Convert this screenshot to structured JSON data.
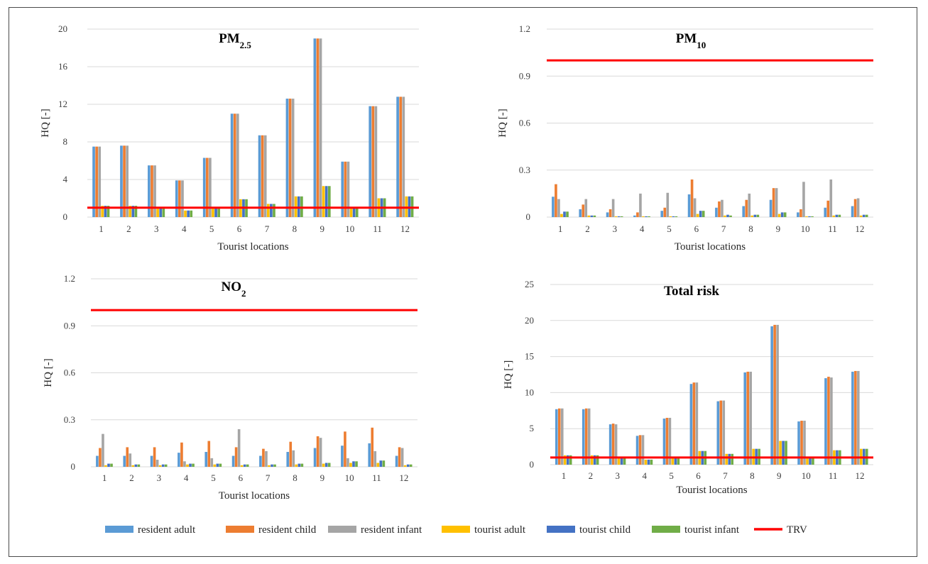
{
  "chart_data": {
    "type": "bar",
    "shared_categories": [
      "1",
      "2",
      "3",
      "4",
      "5",
      "6",
      "7",
      "8",
      "9",
      "10",
      "11",
      "12"
    ],
    "series_names": [
      "resident adult",
      "resident child",
      "resident infant",
      "tourist adult",
      "tourist child",
      "tourist infant"
    ],
    "series_colors": [
      "#5b9bd5",
      "#ed7d31",
      "#a5a5a5",
      "#ffc000",
      "#4472c4",
      "#70ad47"
    ],
    "reference_line": {
      "name": "TRV",
      "value": 1,
      "color": "#ff0000"
    },
    "legend": {
      "position": "bottom",
      "items": [
        "resident adult",
        "resident child",
        "resident infant",
        "tourist adult",
        "tourist child",
        "tourist infant",
        "TRV"
      ]
    },
    "panels": [
      {
        "id": "pm25",
        "title": "PM",
        "title_sub": "2.5",
        "xlabel": "Tourist locations",
        "ylabel": "HQ [-]",
        "ylim": [
          0,
          20
        ],
        "yticks": [
          "0",
          "4",
          "8",
          "12",
          "16",
          "20"
        ],
        "ytick_values": [
          0,
          4,
          8,
          12,
          16,
          20
        ],
        "grid": true,
        "series": [
          {
            "name": "resident adult",
            "values": [
              7.5,
              7.6,
              5.5,
              3.9,
              6.3,
              11.0,
              8.7,
              12.6,
              19.0,
              5.9,
              11.8,
              12.8
            ]
          },
          {
            "name": "resident child",
            "values": [
              7.5,
              7.6,
              5.5,
              3.9,
              6.3,
              11.0,
              8.7,
              12.6,
              19.0,
              5.9,
              11.8,
              12.8
            ]
          },
          {
            "name": "resident infant",
            "values": [
              7.5,
              7.6,
              5.5,
              3.9,
              6.3,
              11.0,
              8.7,
              12.6,
              19.0,
              5.9,
              11.8,
              12.8
            ]
          },
          {
            "name": "tourist adult",
            "values": [
              1.2,
              1.2,
              0.9,
              0.7,
              1.0,
              1.9,
              1.4,
              2.2,
              3.3,
              1.0,
              2.0,
              2.2
            ]
          },
          {
            "name": "tourist child",
            "values": [
              1.2,
              1.2,
              0.9,
              0.7,
              1.0,
              1.9,
              1.4,
              2.2,
              3.3,
              1.0,
              2.0,
              2.2
            ]
          },
          {
            "name": "tourist infant",
            "values": [
              1.2,
              1.2,
              0.9,
              0.7,
              1.0,
              1.9,
              1.4,
              2.2,
              3.3,
              1.0,
              2.0,
              2.2
            ]
          }
        ]
      },
      {
        "id": "pm10",
        "title": "PM",
        "title_sub": "10",
        "xlabel": "Tourist locations",
        "ylabel": "HQ [-]",
        "ylim": [
          0,
          1.2
        ],
        "yticks": [
          "0",
          "0.3",
          "0.6",
          "0.9",
          "1.2"
        ],
        "ytick_values": [
          0,
          0.3,
          0.6,
          0.9,
          1.2
        ],
        "grid": true,
        "series": [
          {
            "name": "resident adult",
            "values": [
              0.13,
              0.05,
              0.03,
              0.01,
              0.04,
              0.145,
              0.06,
              0.07,
              0.11,
              0.03,
              0.06,
              0.07
            ]
          },
          {
            "name": "resident child",
            "values": [
              0.21,
              0.08,
              0.05,
              0.03,
              0.06,
              0.24,
              0.1,
              0.11,
              0.185,
              0.05,
              0.105,
              0.115
            ]
          },
          {
            "name": "resident infant",
            "values": [
              0.115,
              0.115,
              0.115,
              0.15,
              0.155,
              0.12,
              0.11,
              0.15,
              0.185,
              0.225,
              0.24,
              0.12
            ]
          },
          {
            "name": "tourist adult",
            "values": [
              0.02,
              0.01,
              0.005,
              0.005,
              0.005,
              0.02,
              0.01,
              0.01,
              0.02,
              0.005,
              0.01,
              0.01
            ]
          },
          {
            "name": "tourist child",
            "values": [
              0.035,
              0.01,
              0.005,
              0.005,
              0.005,
              0.04,
              0.015,
              0.015,
              0.03,
              0.005,
              0.015,
              0.015
            ]
          },
          {
            "name": "tourist infant",
            "values": [
              0.035,
              0.01,
              0.005,
              0.005,
              0.005,
              0.04,
              0.01,
              0.015,
              0.03,
              0.005,
              0.015,
              0.015
            ]
          }
        ]
      },
      {
        "id": "no2",
        "title": "NO",
        "title_sub": "2",
        "xlabel": "Tourist locations",
        "ylabel": "HQ [-]",
        "ylim": [
          0,
          1.2
        ],
        "yticks": [
          "0",
          "0.3",
          "0.6",
          "0.9",
          "1.2"
        ],
        "ytick_values": [
          0,
          0.3,
          0.6,
          0.9,
          1.2
        ],
        "grid": true,
        "series": [
          {
            "name": "resident adult",
            "values": [
              0.07,
              0.07,
              0.07,
              0.09,
              0.095,
              0.07,
              0.07,
              0.095,
              0.12,
              0.135,
              0.15,
              0.07
            ]
          },
          {
            "name": "resident child",
            "values": [
              0.12,
              0.125,
              0.125,
              0.155,
              0.165,
              0.125,
              0.115,
              0.16,
              0.195,
              0.225,
              0.25,
              0.125
            ]
          },
          {
            "name": "resident infant",
            "values": [
              0.21,
              0.085,
              0.045,
              0.035,
              0.055,
              0.24,
              0.1,
              0.105,
              0.185,
              0.055,
              0.1,
              0.12
            ]
          },
          {
            "name": "tourist adult",
            "values": [
              0.01,
              0.01,
              0.01,
              0.015,
              0.015,
              0.01,
              0.01,
              0.015,
              0.02,
              0.025,
              0.025,
              0.01
            ]
          },
          {
            "name": "tourist child",
            "values": [
              0.02,
              0.015,
              0.015,
              0.02,
              0.02,
              0.015,
              0.015,
              0.02,
              0.025,
              0.035,
              0.04,
              0.015
            ]
          },
          {
            "name": "tourist infant",
            "values": [
              0.02,
              0.015,
              0.015,
              0.02,
              0.02,
              0.015,
              0.015,
              0.02,
              0.025,
              0.035,
              0.04,
              0.015
            ]
          }
        ]
      },
      {
        "id": "total",
        "title": "Total risk",
        "title_sub": "",
        "xlabel": "Tourist locations",
        "ylabel": "HQ [-]",
        "ylim": [
          0,
          25
        ],
        "yticks": [
          "0",
          "5",
          "10",
          "15",
          "20",
          "25"
        ],
        "ytick_values": [
          0,
          5,
          10,
          15,
          20,
          25
        ],
        "grid": true,
        "series": [
          {
            "name": "resident adult",
            "values": [
              7.7,
              7.7,
              5.6,
              4.0,
              6.4,
              11.2,
              8.8,
              12.8,
              19.2,
              6.0,
              12.0,
              12.9
            ]
          },
          {
            "name": "resident child",
            "values": [
              7.8,
              7.8,
              5.7,
              4.1,
              6.5,
              11.4,
              8.9,
              12.9,
              19.4,
              6.1,
              12.2,
              13.0
            ]
          },
          {
            "name": "resident infant",
            "values": [
              7.8,
              7.8,
              5.6,
              4.1,
              6.5,
              11.4,
              8.9,
              12.9,
              19.4,
              6.1,
              12.1,
              13.0
            ]
          },
          {
            "name": "tourist adult",
            "values": [
              1.3,
              1.3,
              1.0,
              0.7,
              1.0,
              1.9,
              1.5,
              2.2,
              3.3,
              1.0,
              2.0,
              2.2
            ]
          },
          {
            "name": "tourist child",
            "values": [
              1.3,
              1.3,
              1.0,
              0.7,
              1.0,
              1.9,
              1.5,
              2.2,
              3.3,
              1.0,
              2.0,
              2.2
            ]
          },
          {
            "name": "tourist infant",
            "values": [
              1.3,
              1.3,
              1.0,
              0.7,
              1.0,
              1.9,
              1.5,
              2.2,
              3.3,
              1.0,
              2.0,
              2.2
            ]
          }
        ]
      }
    ]
  }
}
